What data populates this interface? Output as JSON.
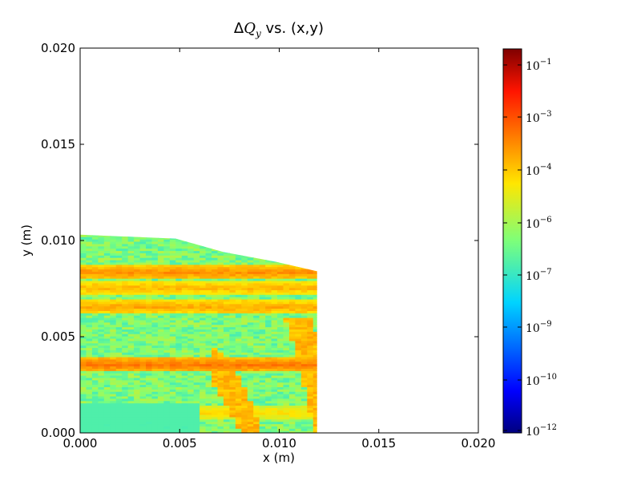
{
  "chart_data": {
    "type": "heatmap",
    "title": {
      "prefix": "Δ",
      "symbol": "Q",
      "subscript": "y",
      "suffix": " vs. (x,y)"
    },
    "xlabel": "x (m)",
    "ylabel": "y (m)",
    "xlim": [
      0.0,
      0.02
    ],
    "ylim": [
      0.0,
      0.02
    ],
    "x_ticks": [
      "0.000",
      "0.005",
      "0.010",
      "0.015",
      "0.020"
    ],
    "y_ticks": [
      "0.000",
      "0.005",
      "0.010",
      "0.015",
      "0.020"
    ],
    "x_tick_values": [
      0.0,
      0.005,
      0.01,
      0.015,
      0.02
    ],
    "y_tick_values": [
      0.0,
      0.005,
      0.01,
      0.015,
      0.02
    ],
    "scale": "log",
    "colormap": "jet",
    "grid": false,
    "data_region_outline": [
      [
        0.0,
        0.0
      ],
      [
        0.0,
        0.0103
      ],
      [
        0.0048,
        0.0101
      ],
      [
        0.0072,
        0.0094
      ],
      [
        0.0098,
        0.0089
      ],
      [
        0.0119,
        0.0084
      ],
      [
        0.0119,
        0.0
      ]
    ],
    "dominant_value": 1e-06,
    "bands": [
      {
        "y": 0.0083,
        "value": 0.001
      },
      {
        "y": 0.0075,
        "value": 0.0003
      },
      {
        "y": 0.0065,
        "value": 0.0005
      },
      {
        "y": 0.0035,
        "value": 0.002
      },
      {
        "y": 0.001,
        "value": 0.0001
      }
    ],
    "colorbar": {
      "scale": "log",
      "range": [
        1e-12,
        1
      ],
      "tick_values": [
        1e-12,
        1e-10,
        1e-09,
        1e-07,
        1e-06,
        0.0001,
        0.001,
        0.1
      ],
      "ticks": [
        {
          "base": "10",
          "exp": "−12"
        },
        {
          "base": "10",
          "exp": "−10"
        },
        {
          "base": "10",
          "exp": "−9"
        },
        {
          "base": "10",
          "exp": "−7"
        },
        {
          "base": "10",
          "exp": "−6"
        },
        {
          "base": "10",
          "exp": "−4"
        },
        {
          "base": "10",
          "exp": "−3"
        },
        {
          "base": "10",
          "exp": "−1"
        }
      ]
    }
  }
}
